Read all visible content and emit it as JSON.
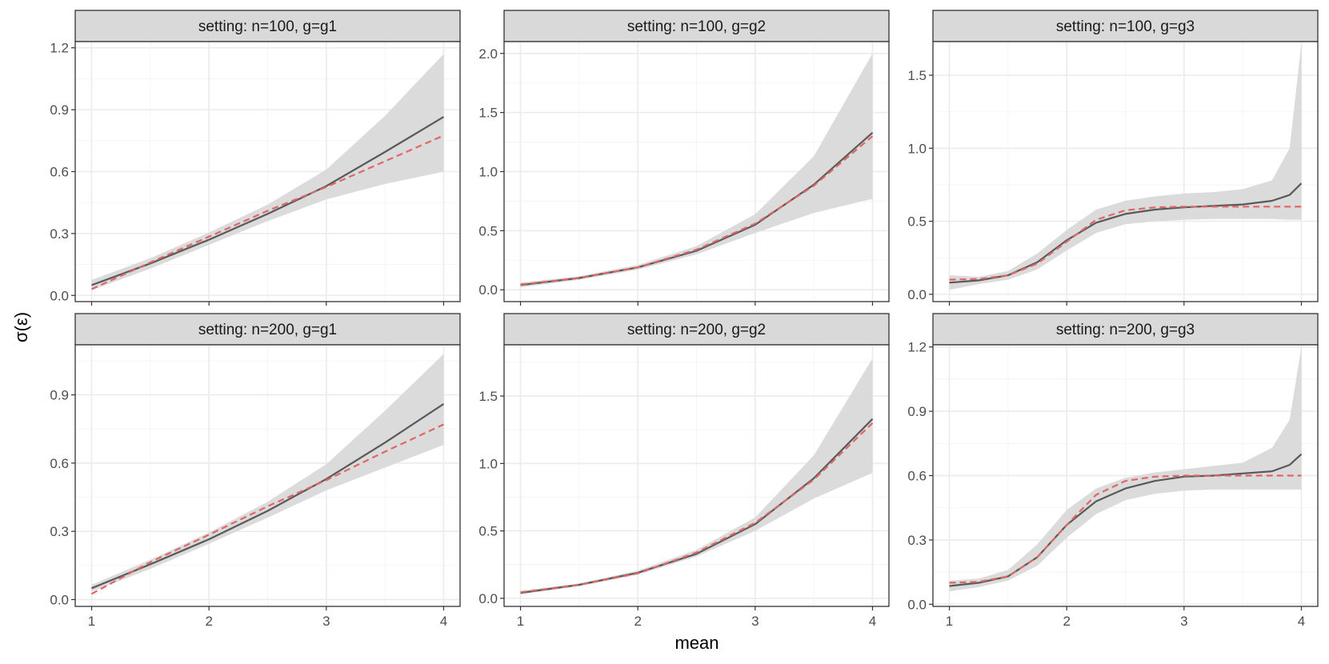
{
  "figure": {
    "xlabel": "mean",
    "ylabel": "σ(ε)",
    "x_ticks": [
      1,
      2,
      3,
      4
    ],
    "x_range": [
      0.86,
      4.14
    ]
  },
  "colors": {
    "estimate_line": "#595959",
    "truth_line": "#e06666",
    "ribbon": "#d9d9d9",
    "strip_bg": "#d9d9d9",
    "panel_border": "#333333"
  },
  "chart_data": [
    {
      "type": "line",
      "title": "setting: n=100, g=g1",
      "xlabel": "mean",
      "ylabel": "σ(ε)",
      "ylim": [
        -0.03,
        1.23
      ],
      "y_ticks": [
        0.0,
        0.3,
        0.6,
        0.9,
        1.2
      ],
      "y_tick_labels": [
        "0.0",
        "0.3",
        "0.6",
        "0.9",
        "1.2"
      ],
      "x": [
        1.0,
        1.5,
        2.0,
        2.5,
        3.0,
        3.5,
        4.0
      ],
      "series": [
        {
          "name": "estimate",
          "style": "solid",
          "values": [
            0.05,
            0.155,
            0.27,
            0.395,
            0.53,
            0.695,
            0.865
          ]
        },
        {
          "name": "truth",
          "style": "dashed",
          "values": [
            0.03,
            0.16,
            0.285,
            0.41,
            0.525,
            0.65,
            0.775
          ]
        },
        {
          "name": "band_lower",
          "style": "ribbon",
          "values": [
            0.025,
            0.13,
            0.245,
            0.36,
            0.465,
            0.54,
            0.6
          ]
        },
        {
          "name": "band_upper",
          "style": "ribbon",
          "values": [
            0.075,
            0.18,
            0.305,
            0.44,
            0.61,
            0.87,
            1.17
          ]
        }
      ]
    },
    {
      "type": "line",
      "title": "setting: n=100, g=g2",
      "xlabel": "mean",
      "ylabel": "σ(ε)",
      "ylim": [
        -0.1,
        2.1
      ],
      "y_ticks": [
        0.0,
        0.5,
        1.0,
        1.5,
        2.0
      ],
      "y_tick_labels": [
        "0.0",
        "0.5",
        "1.0",
        "1.5",
        "2.0"
      ],
      "x": [
        1.0,
        1.5,
        2.0,
        2.5,
        3.0,
        3.5,
        4.0
      ],
      "series": [
        {
          "name": "estimate",
          "style": "solid",
          "values": [
            0.04,
            0.1,
            0.19,
            0.33,
            0.55,
            0.89,
            1.33
          ]
        },
        {
          "name": "truth",
          "style": "dashed",
          "values": [
            0.045,
            0.1,
            0.19,
            0.34,
            0.56,
            0.88,
            1.3
          ]
        },
        {
          "name": "band_lower",
          "style": "ribbon",
          "values": [
            0.02,
            0.085,
            0.17,
            0.3,
            0.48,
            0.65,
            0.77
          ]
        },
        {
          "name": "band_upper",
          "style": "ribbon",
          "values": [
            0.06,
            0.115,
            0.21,
            0.37,
            0.64,
            1.13,
            2.0
          ]
        }
      ]
    },
    {
      "type": "line",
      "title": "setting: n=100, g=g3",
      "xlabel": "mean",
      "ylabel": "σ(ε)",
      "ylim": [
        -0.05,
        1.73
      ],
      "y_ticks": [
        0.0,
        0.5,
        1.0,
        1.5
      ],
      "y_tick_labels": [
        "0.0",
        "0.5",
        "1.0",
        "1.5"
      ],
      "x": [
        1.0,
        1.25,
        1.5,
        1.75,
        2.0,
        2.25,
        2.5,
        2.75,
        3.0,
        3.25,
        3.5,
        3.75,
        3.9,
        4.0
      ],
      "series": [
        {
          "name": "estimate",
          "style": "solid",
          "values": [
            0.08,
            0.095,
            0.13,
            0.22,
            0.37,
            0.49,
            0.55,
            0.58,
            0.595,
            0.605,
            0.615,
            0.64,
            0.68,
            0.76
          ]
        },
        {
          "name": "truth",
          "style": "dashed",
          "values": [
            0.1,
            0.105,
            0.13,
            0.21,
            0.36,
            0.51,
            0.575,
            0.595,
            0.6,
            0.6,
            0.6,
            0.6,
            0.6,
            0.6
          ]
        },
        {
          "name": "band_lower",
          "style": "ribbon",
          "values": [
            0.03,
            0.07,
            0.1,
            0.17,
            0.3,
            0.42,
            0.48,
            0.5,
            0.51,
            0.515,
            0.515,
            0.515,
            0.51,
            0.51
          ]
        },
        {
          "name": "band_upper",
          "style": "ribbon",
          "values": [
            0.13,
            0.12,
            0.16,
            0.28,
            0.44,
            0.58,
            0.64,
            0.67,
            0.69,
            0.7,
            0.72,
            0.78,
            1.0,
            1.72
          ]
        }
      ]
    },
    {
      "type": "line",
      "title": "setting: n=200, g=g1",
      "xlabel": "mean",
      "ylabel": "σ(ε)",
      "ylim": [
        -0.03,
        1.12
      ],
      "y_ticks": [
        0.0,
        0.3,
        0.6,
        0.9
      ],
      "y_tick_labels": [
        "0.0",
        "0.3",
        "0.6",
        "0.9"
      ],
      "x": [
        1.0,
        1.5,
        2.0,
        2.5,
        3.0,
        3.5,
        4.0
      ],
      "series": [
        {
          "name": "estimate",
          "style": "solid",
          "values": [
            0.05,
            0.155,
            0.265,
            0.39,
            0.53,
            0.69,
            0.86
          ]
        },
        {
          "name": "truth",
          "style": "dashed",
          "values": [
            0.025,
            0.165,
            0.285,
            0.41,
            0.525,
            0.65,
            0.77
          ]
        },
        {
          "name": "band_lower",
          "style": "ribbon",
          "values": [
            0.035,
            0.135,
            0.245,
            0.36,
            0.48,
            0.58,
            0.68
          ]
        },
        {
          "name": "band_upper",
          "style": "ribbon",
          "values": [
            0.065,
            0.175,
            0.295,
            0.43,
            0.595,
            0.83,
            1.08
          ]
        }
      ]
    },
    {
      "type": "line",
      "title": "setting: n=200, g=g2",
      "xlabel": "mean",
      "ylabel": "σ(ε)",
      "ylim": [
        -0.06,
        1.88
      ],
      "y_ticks": [
        0.0,
        0.5,
        1.0,
        1.5
      ],
      "y_tick_labels": [
        "0.0",
        "0.5",
        "1.0",
        "1.5"
      ],
      "x": [
        1.0,
        1.5,
        2.0,
        2.5,
        3.0,
        3.5,
        4.0
      ],
      "series": [
        {
          "name": "estimate",
          "style": "solid",
          "values": [
            0.04,
            0.1,
            0.19,
            0.33,
            0.55,
            0.89,
            1.33
          ]
        },
        {
          "name": "truth",
          "style": "dashed",
          "values": [
            0.045,
            0.1,
            0.185,
            0.34,
            0.56,
            0.88,
            1.3
          ]
        },
        {
          "name": "band_lower",
          "style": "ribbon",
          "values": [
            0.03,
            0.09,
            0.175,
            0.31,
            0.5,
            0.74,
            0.93
          ]
        },
        {
          "name": "band_upper",
          "style": "ribbon",
          "values": [
            0.055,
            0.11,
            0.205,
            0.36,
            0.6,
            1.06,
            1.78
          ]
        }
      ]
    },
    {
      "type": "line",
      "title": "setting: n=200, g=g3",
      "xlabel": "mean",
      "ylabel": "σ(ε)",
      "ylim": [
        -0.01,
        1.21
      ],
      "y_ticks": [
        0.0,
        0.3,
        0.6,
        0.9,
        1.2
      ],
      "y_tick_labels": [
        "0.0",
        "0.3",
        "0.6",
        "0.9",
        "1.2"
      ],
      "x": [
        1.0,
        1.25,
        1.5,
        1.75,
        2.0,
        2.25,
        2.5,
        2.75,
        3.0,
        3.25,
        3.5,
        3.75,
        3.9,
        4.0
      ],
      "series": [
        {
          "name": "estimate",
          "style": "solid",
          "values": [
            0.085,
            0.1,
            0.13,
            0.22,
            0.37,
            0.48,
            0.54,
            0.575,
            0.595,
            0.6,
            0.61,
            0.62,
            0.65,
            0.7
          ]
        },
        {
          "name": "truth",
          "style": "dashed",
          "values": [
            0.1,
            0.105,
            0.13,
            0.22,
            0.37,
            0.51,
            0.575,
            0.595,
            0.6,
            0.6,
            0.6,
            0.6,
            0.6,
            0.6
          ]
        },
        {
          "name": "band_lower",
          "style": "ribbon",
          "values": [
            0.06,
            0.08,
            0.11,
            0.18,
            0.31,
            0.42,
            0.485,
            0.515,
            0.53,
            0.535,
            0.535,
            0.535,
            0.535,
            0.535
          ]
        },
        {
          "name": "band_upper",
          "style": "ribbon",
          "values": [
            0.11,
            0.12,
            0.16,
            0.28,
            0.44,
            0.54,
            0.59,
            0.615,
            0.63,
            0.645,
            0.66,
            0.73,
            0.86,
            1.2
          ]
        }
      ]
    }
  ]
}
